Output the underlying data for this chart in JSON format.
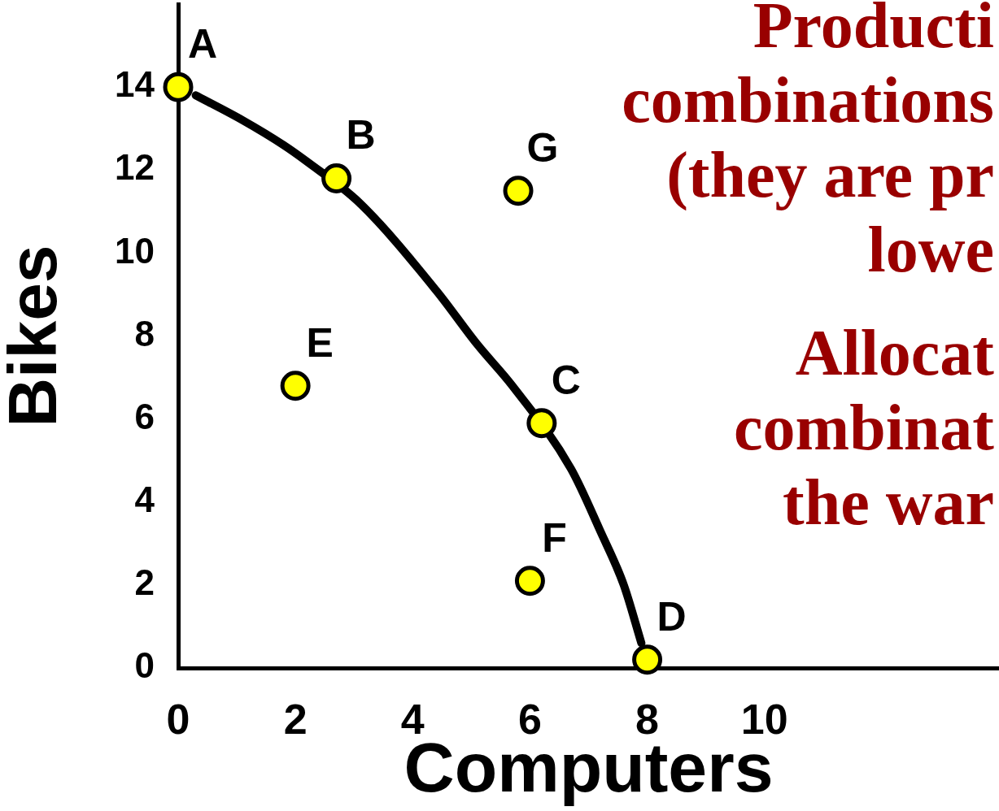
{
  "chart_data": {
    "type": "scatter",
    "xlabel": "Computers",
    "ylabel": "Bikes",
    "xlim": [
      0,
      14
    ],
    "xticks": [
      0,
      2,
      4,
      6,
      8,
      10
    ],
    "ylim": [
      0,
      16
    ],
    "yticks": [
      0,
      2,
      4,
      6,
      8,
      10,
      12,
      14
    ],
    "series": [
      {
        "type": "line",
        "color": "#000000",
        "marker": "none",
        "x": [
          0.3,
          1.1,
          1.8,
          2.2,
          3.1,
          4.4,
          5.1,
          5.7,
          6.7,
          7.2,
          7.6,
          7.9
        ],
        "values": [
          13.8,
          13.2,
          12.6,
          12.2,
          11.2,
          9.1,
          7.8,
          6.8,
          4.8,
          3.3,
          2.0,
          0.6
        ]
      },
      {
        "type": "scatter",
        "color": "#ffff00",
        "marker": "circle",
        "x": [
          0,
          2.7,
          6.2,
          8.0,
          2.0,
          6.0,
          5.8
        ],
        "values": [
          14,
          11.8,
          5.9,
          0.2,
          6.8,
          2.1,
          11.5
        ]
      }
    ],
    "annotations": [
      {
        "text": "A",
        "x": 0,
        "y": 14
      },
      {
        "text": "B",
        "x": 2.7,
        "y": 11.8
      },
      {
        "text": "C",
        "x": 6.2,
        "y": 5.9
      },
      {
        "text": "D",
        "x": 8.0,
        "y": 0.2
      },
      {
        "text": "E",
        "x": 2.0,
        "y": 6.8
      },
      {
        "text": "F",
        "x": 6.0,
        "y": 2.1
      },
      {
        "text": "G",
        "x": 5.8,
        "y": 11.5
      },
      "Producti\ncombinations\n(they are pr\nlowe",
      "Allocat\ncombinat\nthe war"
    ]
  }
}
